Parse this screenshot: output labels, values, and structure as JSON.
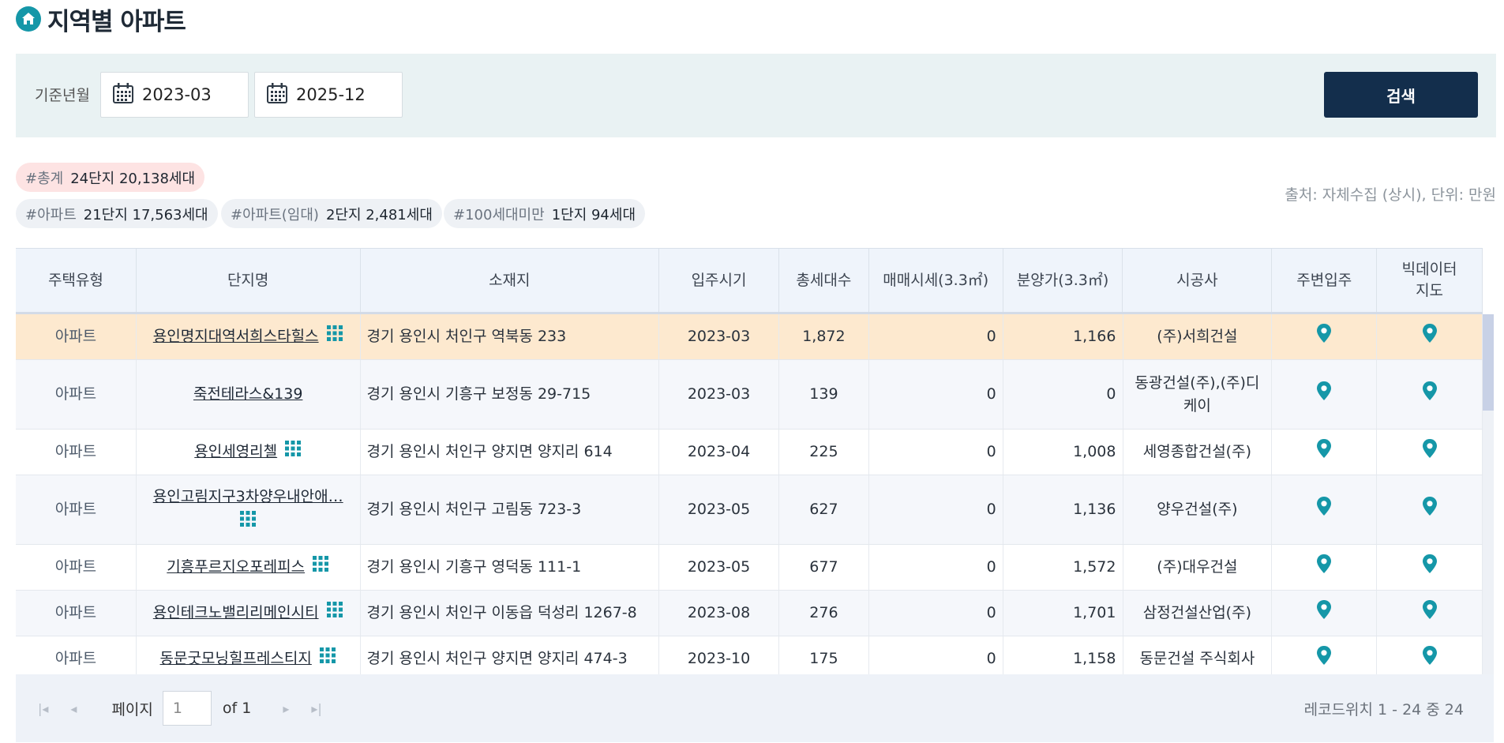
{
  "header": {
    "title": "지역별 아파트",
    "icon": "home-icon"
  },
  "search": {
    "period_label": "기준년월",
    "start_month": "2023-03",
    "end_month": "2025-12",
    "button_label": "검색"
  },
  "summary": {
    "total": {
      "key": "#총계",
      "value": "24단지 20,138세대"
    },
    "apartment": {
      "key": "#아파트",
      "value": "21단지 17,563세대"
    },
    "rental": {
      "key": "#아파트(임대)",
      "value": "2단지 2,481세대"
    },
    "small": {
      "key": "#100세대미만",
      "value": "1단지 94세대"
    },
    "source": "출처: 자체수집 (상시), 단위: 만원"
  },
  "table": {
    "columns": {
      "type": "주택유형",
      "name": "단지명",
      "address": "소재지",
      "move_in": "입주시기",
      "households": "총세대수",
      "sale_price": "매매시세(3.3㎡)",
      "presale_price": "분양가(3.3㎡)",
      "builder": "시공사",
      "nearby": "주변입주",
      "bigdata_l1": "빅데이터",
      "bigdata_l2": "지도"
    },
    "rows": [
      {
        "type": "아파트",
        "name": "용인명지대역서희스타힐스",
        "address": "경기 용인시 처인구 역북동 233",
        "move_in": "2023-03",
        "households": "1,872",
        "sale_price": "0",
        "presale_price": "1,166",
        "builder": "(주)서희건설"
      },
      {
        "type": "아파트",
        "name": "죽전테라스&139",
        "address": "경기 용인시 기흥구 보정동 29-715",
        "move_in": "2023-03",
        "households": "139",
        "sale_price": "0",
        "presale_price": "0",
        "builder": "동광건설(주),(주)디케이"
      },
      {
        "type": "아파트",
        "name": "용인세영리첼",
        "address": "경기 용인시 처인구 양지면 양지리 614",
        "move_in": "2023-04",
        "households": "225",
        "sale_price": "0",
        "presale_price": "1,008",
        "builder": "세영종합건설(주)"
      },
      {
        "type": "아파트",
        "name": "용인고림지구3차양우내안애…",
        "address": "경기 용인시 처인구 고림동 723-3",
        "move_in": "2023-05",
        "households": "627",
        "sale_price": "0",
        "presale_price": "1,136",
        "builder": "양우건설(주)"
      },
      {
        "type": "아파트",
        "name": "기흥푸르지오포레피스",
        "address": "경기 용인시 기흥구 영덕동 111-1",
        "move_in": "2023-05",
        "households": "677",
        "sale_price": "0",
        "presale_price": "1,572",
        "builder": "(주)대우건설"
      },
      {
        "type": "아파트",
        "name": "용인테크노밸리리메인시티",
        "address": "경기 용인시 처인구 이동읍 덕성리 1267-8",
        "move_in": "2023-08",
        "households": "276",
        "sale_price": "0",
        "presale_price": "1,701",
        "builder": "삼정건설산업(주)"
      },
      {
        "type": "아파트",
        "name": "동문굿모닝힐프레스티지",
        "address": "경기 용인시 처인구 양지면 양지리 474-3",
        "move_in": "2023-10",
        "households": "175",
        "sale_price": "0",
        "presale_price": "1,158",
        "builder": "동문건설 주식회사"
      }
    ]
  },
  "pager": {
    "page_label": "페이지",
    "current_page": "1",
    "of_label": "of 1",
    "record_info": "레코드위치 1 - 24 중 24"
  },
  "colors": {
    "accent_teal": "#1597a8",
    "button_navy": "#132e4c",
    "selected_row": "#fde9cf",
    "total_tag": "#fde3e3"
  }
}
